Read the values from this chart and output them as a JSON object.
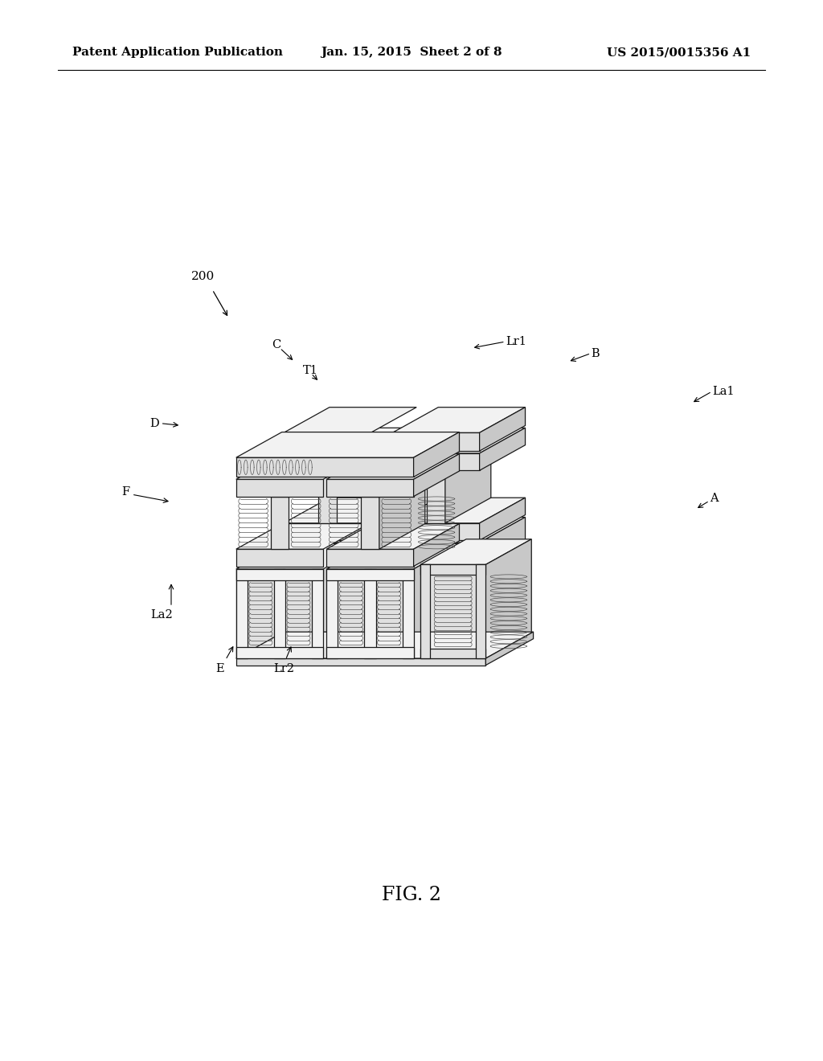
{
  "background_color": "#ffffff",
  "header_left": "Patent Application Publication",
  "header_center": "Jan. 15, 2015  Sheet 2 of 8",
  "header_right": "US 2015/0015356 A1",
  "fig_label": "FIG. 2",
  "ref_number": "200",
  "label_fontsize": 10.5,
  "header_fontsize": 11,
  "fig_label_fontsize": 17,
  "ref_fontsize": 11,
  "line_color": "#1a1a1a",
  "c_top": "#f2f2f2",
  "c_front": "#e0e0e0",
  "c_right": "#c8c8c8",
  "c_dark": "#b0b0b0",
  "c_white": "#ffffff",
  "c_coil_bg": "#e8e8e8"
}
